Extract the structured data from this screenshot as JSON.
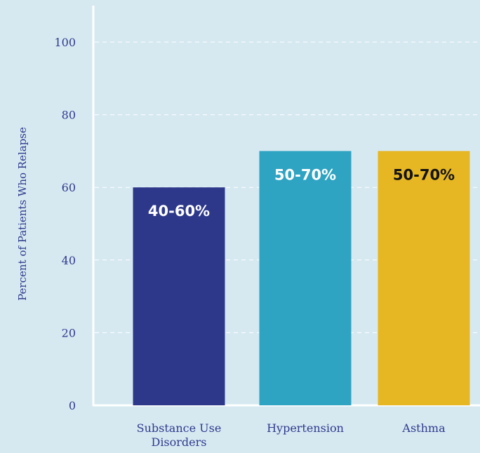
{
  "chart_data": {
    "type": "bar",
    "categories": [
      "Substance Use Disorders",
      "Hypertension",
      "Asthma"
    ],
    "category_lines": [
      [
        "Substance Use",
        "Disorders"
      ],
      [
        "Hypertension"
      ],
      [
        "Asthma"
      ]
    ],
    "values": [
      60,
      70,
      70
    ],
    "data_labels": [
      "40-60%",
      "50-70%",
      "50-70%"
    ],
    "bar_colors": [
      "#2d388a",
      "#2ea3c2",
      "#e6b623"
    ],
    "label_colors": [
      "#ffffff",
      "#ffffff",
      "#111111"
    ],
    "ylabel": "Percent of Patients Who Relapse",
    "xlabel": "",
    "title": "",
    "ylim": [
      0,
      100
    ],
    "yticks": [
      0,
      20,
      40,
      60,
      80,
      100
    ],
    "grid": true,
    "legend": "none"
  }
}
